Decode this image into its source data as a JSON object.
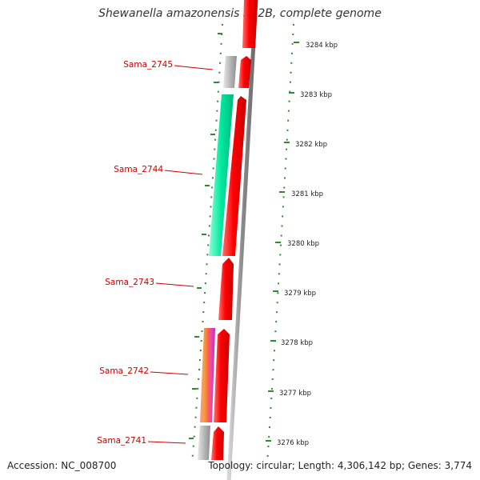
{
  "header": {
    "title": "Shewanella amazonensis SB2B, complete genome"
  },
  "footer": {
    "accession": "Accession: NC_008700",
    "summary": "Topology: circular; Length: 4,306,142 bp; Genes: 3,774"
  },
  "colors": {
    "cds": "#ff0000",
    "cds_dark": "#cc0000",
    "hypothetical": "#b0b0b0",
    "highlight_green": "#00e8a0",
    "highlight_orange": "#f29a2e",
    "highlight_magenta": "#e040c0",
    "backbone": "#9e9e9e",
    "tick": "#2e8b2e",
    "label": "#cc0000",
    "scale_text": "#222222"
  },
  "scale_labels": [
    "3284 kbp",
    "3283 kbp",
    "3282 kbp",
    "3281 kbp",
    "3280 kbp",
    "3279 kbp",
    "3278 kbp",
    "3277 kbp",
    "3276 kbp"
  ],
  "gene_labels": [
    "Sama_2745",
    "Sama_2744",
    "Sama_2743",
    "Sama_2742",
    "Sama_2741"
  ]
}
